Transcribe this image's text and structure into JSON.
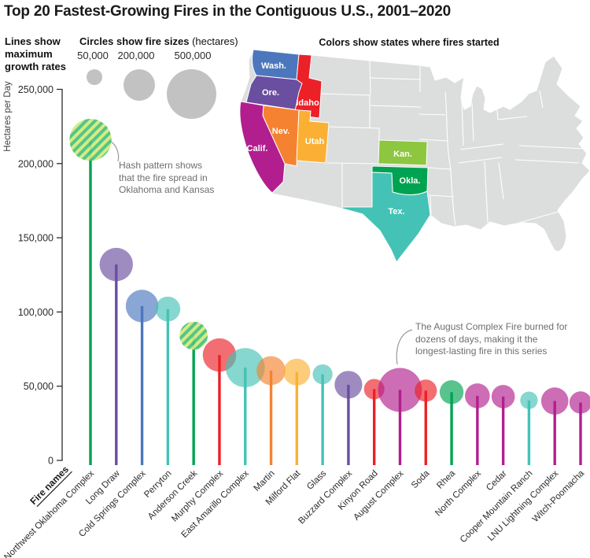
{
  "title": "Top 20 Fastest-Growing Fires in the Contiguous U.S., 2001–2020",
  "legend": {
    "lines_label": "Lines show maximum growth rates",
    "circles_label": "Circles show fire sizes",
    "circles_unit": " (hectares)",
    "sizes": [
      "50,000",
      "200,000",
      "500,000"
    ],
    "size_values": [
      50000,
      200000,
      500000
    ],
    "circle_color": "#c2c2c2"
  },
  "map": {
    "title": "Colors show states where fires started",
    "other_states_color": "#dcdddd",
    "states": [
      {
        "abbr": "Wash.",
        "name": "Washington",
        "color": "#4C77BD"
      },
      {
        "abbr": "Ore.",
        "name": "Oregon",
        "color": "#6A4EA0"
      },
      {
        "abbr": "Idaho",
        "name": "Idaho",
        "color": "#EC2027"
      },
      {
        "abbr": "Nev.",
        "name": "Nevada",
        "color": "#F58230"
      },
      {
        "abbr": "Utah",
        "name": "Utah",
        "color": "#FBB034"
      },
      {
        "abbr": "Calif.",
        "name": "California",
        "color": "#B21E8E"
      },
      {
        "abbr": "Kan.",
        "name": "Kansas",
        "color": "#8DC63F"
      },
      {
        "abbr": "Okla.",
        "name": "Oklahoma",
        "color": "#00A351"
      },
      {
        "abbr": "Tex.",
        "name": "Texas",
        "color": "#45C2B6"
      }
    ]
  },
  "chart_data": {
    "type": "lollipop",
    "ylabel": "Hectares per Day",
    "xlabel": "Fire names",
    "ylim": [
      0,
      250000
    ],
    "y_ticks": [
      {
        "label": "250,000",
        "value": 250000
      },
      {
        "label": "200,000",
        "value": 200000
      },
      {
        "label": "150,000",
        "value": 150000
      },
      {
        "label": "100,000",
        "value": 100000
      },
      {
        "label": "50,000",
        "value": 50000
      },
      {
        "label": "0",
        "value": 0
      }
    ],
    "hash_colors": [
      "#45C17D",
      "#D3E97C"
    ],
    "hash_meaning": "Hash pattern shows that the fire spread in Oklahoma and Kansas",
    "fires": [
      {
        "name": "Northwest Oklahoma Complex",
        "state": "Oklahoma",
        "color": "#00A351",
        "hashed": true,
        "growth_ha_per_day": 216000,
        "fire_size_ha": 355000
      },
      {
        "name": "Long Draw",
        "state": "Oregon",
        "color": "#6A4EA0",
        "hashed": false,
        "growth_ha_per_day": 132000,
        "fire_size_ha": 225000
      },
      {
        "name": "Cold Springs Complex",
        "state": "Washington",
        "color": "#4C77BD",
        "hashed": false,
        "growth_ha_per_day": 104000,
        "fire_size_ha": 215000
      },
      {
        "name": "Perryton",
        "state": "Texas",
        "color": "#45C2B6",
        "hashed": false,
        "growth_ha_per_day": 102000,
        "fire_size_ha": 125000
      },
      {
        "name": "Anderson Creek",
        "state": "Oklahoma",
        "color": "#00A351",
        "hashed": true,
        "growth_ha_per_day": 84000,
        "fire_size_ha": 160000
      },
      {
        "name": "Murphy Complex",
        "state": "Idaho",
        "color": "#EC2027",
        "hashed": false,
        "growth_ha_per_day": 71000,
        "fire_size_ha": 225000
      },
      {
        "name": "East Amarillo Complex",
        "state": "Texas",
        "color": "#45C2B6",
        "hashed": false,
        "growth_ha_per_day": 62500,
        "fire_size_ha": 310000
      },
      {
        "name": "Martin",
        "state": "Nevada",
        "color": "#F58230",
        "hashed": false,
        "growth_ha_per_day": 60500,
        "fire_size_ha": 170000
      },
      {
        "name": "Milford Flat",
        "state": "Utah",
        "color": "#FBB034",
        "hashed": false,
        "growth_ha_per_day": 59500,
        "fire_size_ha": 145000
      },
      {
        "name": "Glass",
        "state": "Texas",
        "color": "#45C2B6",
        "hashed": false,
        "growth_ha_per_day": 58000,
        "fire_size_ha": 80000
      },
      {
        "name": "Buzzard Complex",
        "state": "Oregon",
        "color": "#6A4EA0",
        "hashed": false,
        "growth_ha_per_day": 51000,
        "fire_size_ha": 155000
      },
      {
        "name": "Kinyon Road",
        "state": "Idaho",
        "color": "#EC2027",
        "hashed": false,
        "growth_ha_per_day": 48000,
        "fire_size_ha": 85000
      },
      {
        "name": "August Complex",
        "state": "California",
        "color": "#B21E8E",
        "hashed": false,
        "growth_ha_per_day": 47500,
        "fire_size_ha": 390000
      },
      {
        "name": "Soda",
        "state": "Idaho",
        "color": "#EC2027",
        "hashed": false,
        "growth_ha_per_day": 47000,
        "fire_size_ha": 100000
      },
      {
        "name": "Rhea",
        "state": "Oklahoma",
        "color": "#00A351",
        "hashed": false,
        "growth_ha_per_day": 46000,
        "fire_size_ha": 115000
      },
      {
        "name": "North Complex",
        "state": "California",
        "color": "#B21E8E",
        "hashed": false,
        "growth_ha_per_day": 43500,
        "fire_size_ha": 125000
      },
      {
        "name": "Cedar",
        "state": "California",
        "color": "#B21E8E",
        "hashed": false,
        "growth_ha_per_day": 43000,
        "fire_size_ha": 110000
      },
      {
        "name": "Cooper Mountain Ranch",
        "state": "Texas",
        "color": "#45C2B6",
        "hashed": false,
        "growth_ha_per_day": 40500,
        "fire_size_ha": 62000
      },
      {
        "name": "LNU Lightning Complex",
        "state": "California",
        "color": "#B21E8E",
        "hashed": false,
        "growth_ha_per_day": 40000,
        "fire_size_ha": 150000
      },
      {
        "name": "Witch-Poomacha",
        "state": "California",
        "color": "#B21E8E",
        "hashed": false,
        "growth_ha_per_day": 39000,
        "fire_size_ha": 100000
      }
    ],
    "annotations": [
      {
        "text": "Hash pattern shows that the fire spread in Oklahoma and Kansas"
      },
      {
        "text": "The August Complex Fire burned for dozens of days, making it the longest-lasting fire in this series"
      }
    ]
  }
}
